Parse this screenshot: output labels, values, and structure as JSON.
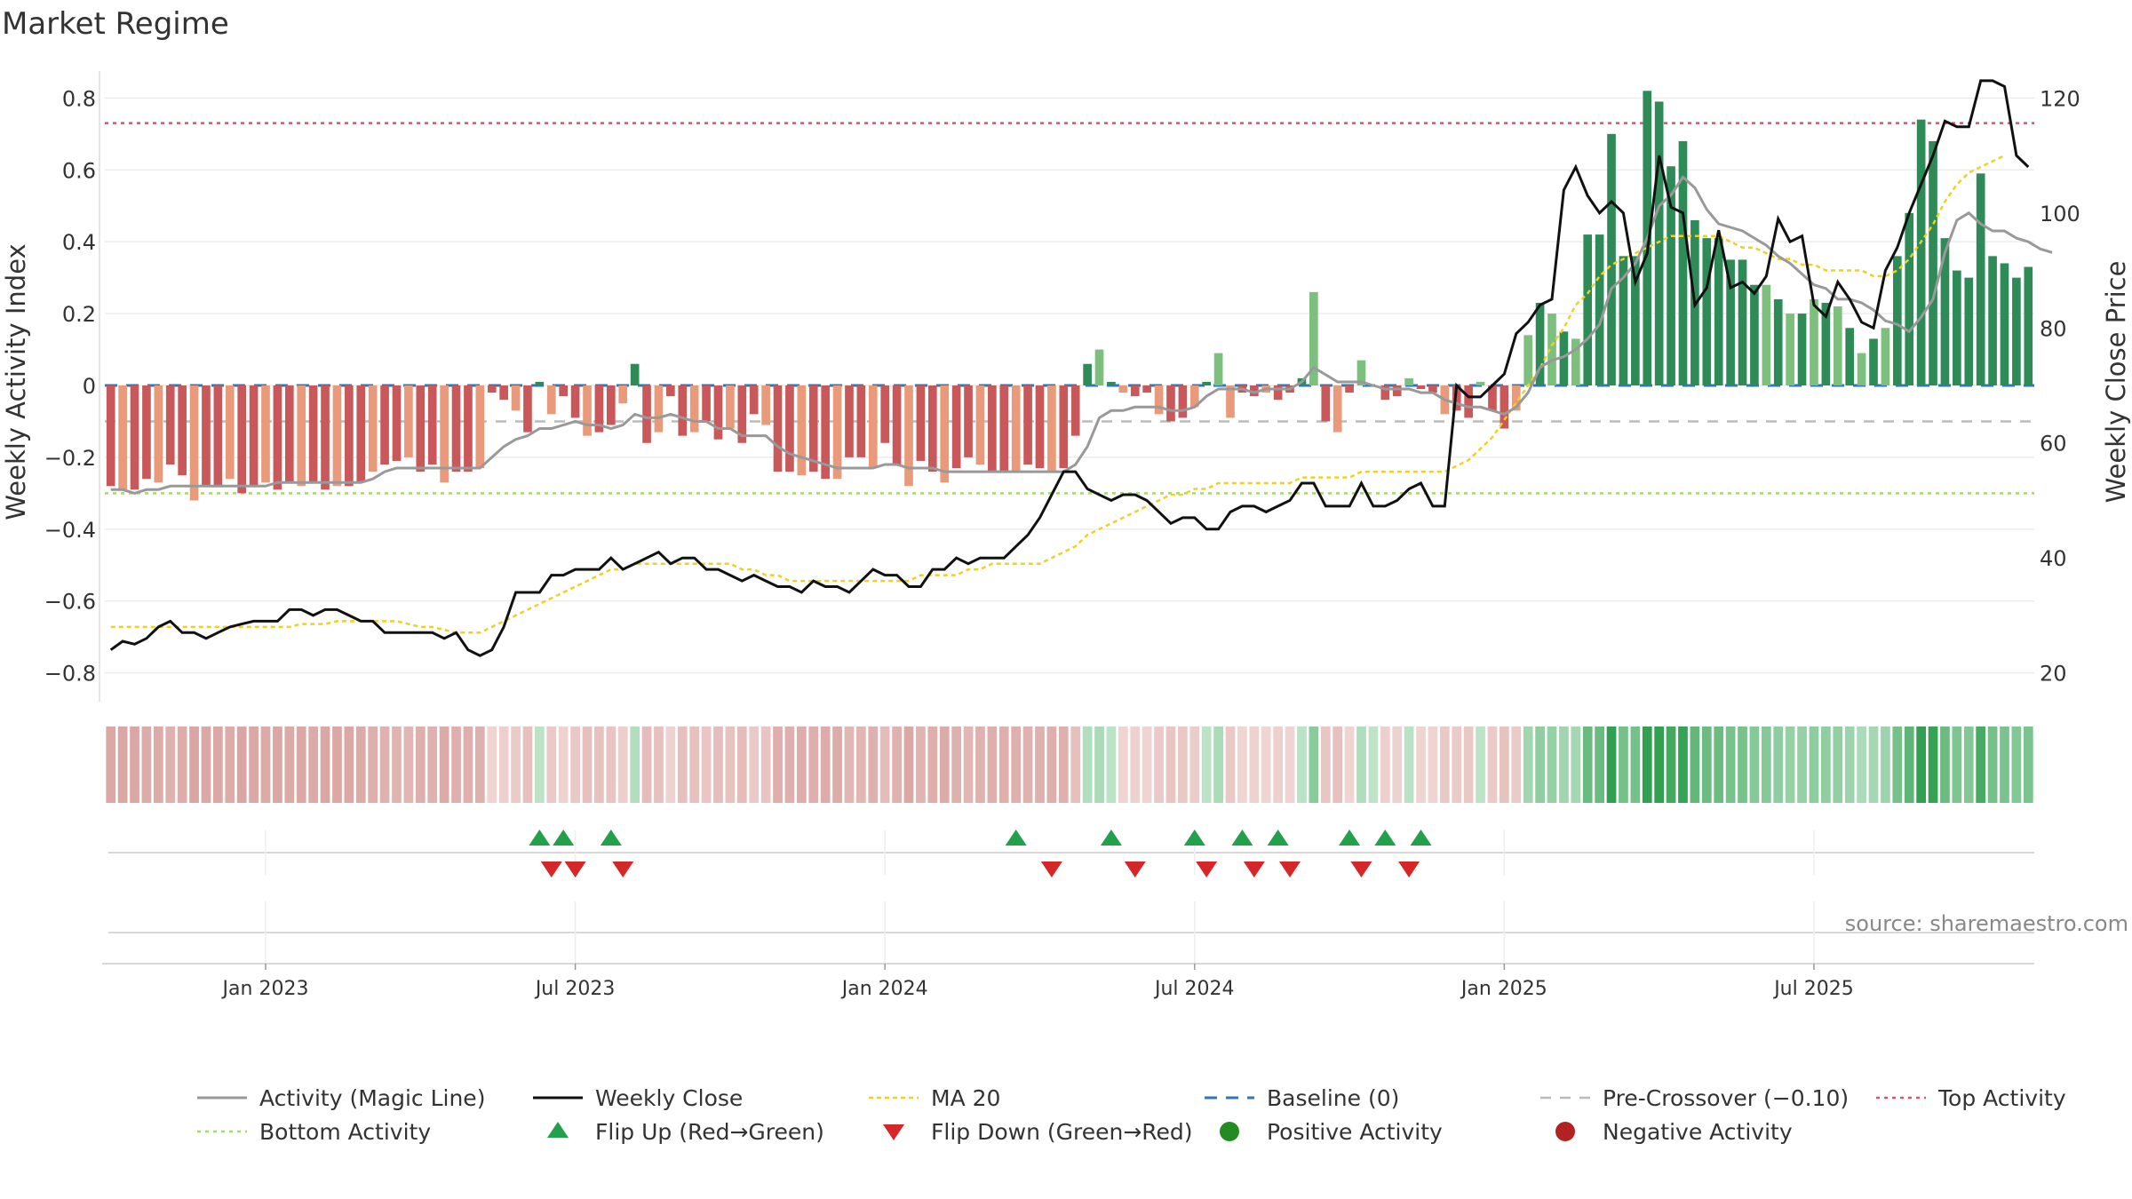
{
  "chart_data": {
    "type": "bar",
    "title": "Market Regime",
    "ylabel": "Weekly Activity Index",
    "y2label": "Weekly Close Price",
    "source": "source: sharemaestro.com",
    "ylim": [
      -0.88,
      0.88
    ],
    "y2lim": [
      15,
      125
    ],
    "y_ticks": [
      -0.8,
      -0.6,
      -0.4,
      -0.2,
      0,
      0.2,
      0.4,
      0.6,
      0.8
    ],
    "y_tick_labels": [
      "−0.8",
      "−0.6",
      "−0.4",
      "−0.2",
      "0",
      "0.2",
      "0.4",
      "0.6",
      "0.8"
    ],
    "y2_ticks": [
      20,
      40,
      60,
      80,
      100,
      120
    ],
    "y2_tick_labels": [
      "20",
      "40",
      "60",
      "80",
      "100",
      "120"
    ],
    "x_ticks": [
      "Jan 2023",
      "Jul 2023",
      "Jan 2024",
      "Jul 2024",
      "Jan 2025",
      "Jul 2025"
    ],
    "x_tick_week_index": [
      13,
      39,
      65,
      91,
      117,
      143
    ],
    "top_activity": 0.73,
    "bottom_activity": -0.3,
    "pre_crossover": -0.1,
    "baseline": 0,
    "colors": {
      "pos_strong": "#2e8b57",
      "pos_light": "#7dbf7d",
      "neg_strong": "#c9585a",
      "neg_light": "#e89a7a",
      "magic_line": "#999999",
      "close": "#111111",
      "ma20": "#f0d020",
      "baseline": "#2e78b8",
      "pre_crossover": "#bbbbbb",
      "top": "#d9536b",
      "bottom": "#a8d86a",
      "flip_up": "#22a04a",
      "flip_down": "#d62728",
      "positive_dot": "#228b22",
      "negative_dot": "#b22222"
    },
    "series": [
      {
        "name": "Weekly Activity Index",
        "values": [
          -0.28,
          -0.29,
          -0.29,
          -0.26,
          -0.27,
          -0.22,
          -0.25,
          -0.32,
          -0.28,
          -0.28,
          -0.26,
          -0.3,
          -0.28,
          -0.27,
          -0.29,
          -0.27,
          -0.28,
          -0.27,
          -0.29,
          -0.28,
          -0.28,
          -0.27,
          -0.24,
          -0.22,
          -0.21,
          -0.2,
          -0.24,
          -0.22,
          -0.27,
          -0.24,
          -0.24,
          -0.23,
          -0.02,
          -0.04,
          -0.07,
          -0.13,
          0.01,
          -0.08,
          -0.03,
          -0.09,
          -0.14,
          -0.13,
          -0.11,
          -0.05,
          0.06,
          -0.16,
          -0.13,
          -0.03,
          -0.14,
          -0.13,
          -0.1,
          -0.15,
          -0.12,
          -0.16,
          -0.08,
          -0.11,
          -0.24,
          -0.24,
          -0.25,
          -0.24,
          -0.26,
          -0.26,
          -0.2,
          -0.2,
          -0.23,
          -0.16,
          -0.22,
          -0.28,
          -0.21,
          -0.24,
          -0.27,
          -0.23,
          -0.2,
          -0.22,
          -0.24,
          -0.24,
          -0.24,
          -0.22,
          -0.23,
          -0.24,
          -0.23,
          -0.14,
          0.06,
          0.1,
          0.01,
          -0.02,
          -0.03,
          -0.02,
          -0.08,
          -0.1,
          -0.09,
          -0.06,
          0.01,
          0.09,
          -0.09,
          -0.02,
          -0.03,
          -0.02,
          -0.04,
          -0.02,
          0.02,
          0.26,
          -0.1,
          -0.13,
          -0.02,
          0.07,
          0.0,
          -0.04,
          -0.03,
          0.02,
          -0.01,
          -0.02,
          -0.08,
          -0.07,
          -0.09,
          0.01,
          -0.07,
          -0.12,
          -0.07,
          0.14,
          0.23,
          0.2,
          0.15,
          0.13,
          0.42,
          0.42,
          0.7,
          0.36,
          0.36,
          0.82,
          0.79,
          0.61,
          0.68,
          0.46,
          0.41,
          0.41,
          0.35,
          0.35,
          0.28,
          0.28,
          0.24,
          0.2,
          0.2,
          0.24,
          0.23,
          0.22,
          0.16,
          0.09,
          0.13,
          0.16,
          0.36,
          0.48,
          0.74,
          0.68,
          0.41,
          0.32,
          0.3,
          0.59,
          0.36,
          0.34,
          0.3,
          0.33
        ]
      },
      {
        "name": "Activity (Magic Line)",
        "values": [
          -0.29,
          -0.29,
          -0.3,
          -0.29,
          -0.29,
          -0.28,
          -0.28,
          -0.28,
          -0.28,
          -0.28,
          -0.28,
          -0.28,
          -0.28,
          -0.28,
          -0.27,
          -0.27,
          -0.27,
          -0.27,
          -0.27,
          -0.27,
          -0.27,
          -0.27,
          -0.26,
          -0.24,
          -0.23,
          -0.23,
          -0.23,
          -0.23,
          -0.23,
          -0.23,
          -0.23,
          -0.23,
          -0.2,
          -0.17,
          -0.15,
          -0.14,
          -0.12,
          -0.12,
          -0.11,
          -0.1,
          -0.11,
          -0.11,
          -0.12,
          -0.11,
          -0.08,
          -0.09,
          -0.09,
          -0.08,
          -0.09,
          -0.1,
          -0.1,
          -0.12,
          -0.12,
          -0.14,
          -0.14,
          -0.14,
          -0.17,
          -0.19,
          -0.2,
          -0.21,
          -0.22,
          -0.23,
          -0.23,
          -0.23,
          -0.23,
          -0.22,
          -0.22,
          -0.23,
          -0.23,
          -0.23,
          -0.24,
          -0.24,
          -0.24,
          -0.24,
          -0.24,
          -0.24,
          -0.24,
          -0.24,
          -0.24,
          -0.24,
          -0.24,
          -0.22,
          -0.17,
          -0.09,
          -0.07,
          -0.07,
          -0.06,
          -0.06,
          -0.06,
          -0.07,
          -0.07,
          -0.06,
          -0.03,
          -0.01,
          -0.01,
          -0.01,
          -0.02,
          -0.01,
          -0.01,
          -0.01,
          0.01,
          0.05,
          0.03,
          0.01,
          0.01,
          0.01,
          0.0,
          -0.01,
          -0.01,
          -0.01,
          -0.02,
          -0.02,
          -0.04,
          -0.05,
          -0.06,
          -0.06,
          -0.07,
          -0.08,
          -0.06,
          -0.02,
          0.05,
          0.07,
          0.08,
          0.1,
          0.13,
          0.17,
          0.27,
          0.3,
          0.34,
          0.41,
          0.5,
          0.53,
          0.58,
          0.55,
          0.49,
          0.45,
          0.44,
          0.43,
          0.41,
          0.39,
          0.36,
          0.34,
          0.31,
          0.28,
          0.27,
          0.24,
          0.24,
          0.23,
          0.21,
          0.18,
          0.17,
          0.15,
          0.19,
          0.24,
          0.37,
          0.46,
          0.48,
          0.45,
          0.43,
          0.43,
          0.41,
          0.4,
          0.38,
          0.37
        ]
      },
      {
        "name": "Weekly Close",
        "values": [
          24,
          25.5,
          25,
          26,
          28,
          29,
          27,
          27,
          26,
          27,
          28,
          28.5,
          29,
          29,
          29,
          31,
          31,
          30,
          31,
          31,
          30,
          29,
          29,
          27,
          27,
          27,
          27,
          27,
          26,
          27,
          24,
          23,
          24,
          28,
          34,
          34,
          34,
          37,
          37,
          38,
          38,
          38,
          40,
          38,
          39,
          40,
          41,
          39,
          40,
          40,
          38,
          38,
          37,
          36,
          37,
          36,
          35,
          35,
          34,
          36,
          35,
          35,
          34,
          36,
          38,
          37,
          37,
          35,
          35,
          38,
          38,
          40,
          39,
          40,
          40,
          40,
          42,
          44,
          47,
          51,
          55,
          55,
          52,
          51,
          50,
          51,
          51,
          50,
          48,
          46,
          47,
          47,
          45,
          45,
          48,
          49,
          49,
          48,
          49,
          50,
          53,
          53,
          49,
          49,
          49,
          53,
          49,
          49,
          50,
          52,
          53,
          49,
          49,
          70,
          68,
          68,
          70,
          72,
          79,
          81,
          84,
          85,
          104,
          108,
          103,
          100,
          102,
          100,
          88,
          93,
          110,
          101,
          100,
          84,
          87,
          97,
          87,
          88,
          86,
          89,
          99,
          95,
          96,
          84,
          82,
          88,
          85,
          81,
          80,
          90,
          94,
          100,
          105,
          110,
          116,
          115,
          115,
          123,
          123,
          122,
          110,
          108
        ]
      },
      {
        "name": "MA 20",
        "values": [
          28,
          28,
          28,
          28,
          28,
          28,
          28,
          28,
          28,
          28,
          28,
          28,
          28,
          28,
          28,
          28,
          28.5,
          28.5,
          28.5,
          29,
          29,
          29,
          29,
          29,
          29,
          28.5,
          28,
          28,
          27.5,
          27,
          27,
          27,
          28,
          29,
          30,
          31,
          32,
          33,
          34,
          35,
          36,
          37,
          38,
          38,
          39,
          39,
          39,
          39,
          39,
          39,
          39,
          39,
          39,
          38,
          38,
          37,
          37,
          36,
          36,
          36,
          36,
          36,
          36,
          36,
          36,
          36,
          36,
          36,
          37,
          37,
          37,
          37,
          38,
          38,
          39,
          39,
          39,
          39,
          39,
          40,
          41,
          42,
          44,
          45,
          46,
          47,
          48,
          49,
          50,
          51,
          51,
          52,
          52,
          53,
          53,
          53,
          53,
          53,
          53,
          53,
          54,
          54,
          54,
          54,
          54,
          55,
          55,
          55,
          55,
          55,
          55,
          55,
          55,
          56,
          57,
          59,
          61,
          64,
          67,
          70,
          73,
          77,
          80,
          84,
          86,
          89,
          91,
          92,
          93,
          94,
          95,
          96,
          96,
          96,
          96,
          96,
          95,
          94,
          94,
          93,
          92,
          92,
          91,
          91,
          90,
          90,
          90,
          90,
          89,
          89,
          90,
          92,
          95,
          98,
          102,
          105,
          107,
          108,
          109,
          110
        ]
      },
      {
        "name": "Baseline (0)",
        "values": []
      },
      {
        "name": "Pre-Crossover (−0.10)",
        "values": []
      },
      {
        "name": "Top Activity",
        "values": []
      },
      {
        "name": "Bottom Activity",
        "values": []
      },
      {
        "name": "Flip Up (Red→Green)",
        "week_index": [
          36,
          38,
          42,
          76,
          84,
          91,
          95,
          98,
          104,
          107,
          110
        ]
      },
      {
        "name": "Flip Down (Green→Red)",
        "week_index": [
          37,
          39,
          43,
          79,
          86,
          92,
          96,
          99,
          105,
          109
        ]
      },
      {
        "name": "Positive Activity",
        "values": []
      },
      {
        "name": "Negative Activity",
        "values": []
      }
    ],
    "legend_position": "bottom",
    "legend_items": [
      "Activity (Magic Line)",
      "Weekly Close",
      "MA 20",
      "Baseline (0)",
      "Pre-Crossover (−0.10)",
      "Top Activity",
      "Bottom Activity",
      "Flip Up (Red→Green)",
      "Flip Down (Green→Red)",
      "Positive Activity",
      "Negative Activity"
    ]
  }
}
